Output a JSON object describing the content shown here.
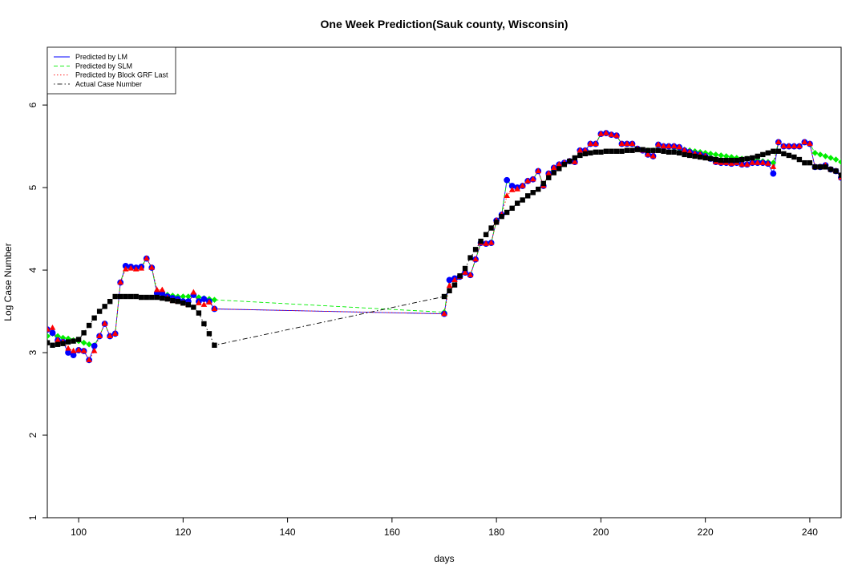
{
  "chart_data": {
    "type": "line",
    "title": "One Week Prediction(Sauk county, Wisconsin)",
    "xlabel": "days",
    "ylabel": "Log Case Number",
    "xlim": [
      94,
      246
    ],
    "ylim": [
      1,
      6.7
    ],
    "x_ticks": [
      100,
      120,
      140,
      160,
      180,
      200,
      220,
      240
    ],
    "y_ticks": [
      1,
      2,
      3,
      4,
      5,
      6
    ],
    "legend": {
      "position": "top-left",
      "entries": [
        {
          "label": "Predicted by LM",
          "color": "#0000ff",
          "dash": "solid"
        },
        {
          "label": "Predicted by SLM",
          "color": "#00ee00",
          "dash": "dashed"
        },
        {
          "label": "Predicted by Block GRF Last",
          "color": "#ff0000",
          "dash": "dotted"
        },
        {
          "label": "Actual Case Number",
          "color": "#000000",
          "dash": "dotdash"
        }
      ]
    },
    "series": [
      {
        "name": "Predicted by LM",
        "color": "#0000ff",
        "marker": "circle",
        "x": [
          94,
          95,
          96,
          97,
          98,
          99,
          100,
          101,
          102,
          103,
          104,
          105,
          106,
          107,
          108,
          109,
          110,
          111,
          112,
          113,
          114,
          115,
          116,
          117,
          118,
          119,
          120,
          121,
          122,
          123,
          124,
          125,
          126,
          170,
          171,
          172,
          173,
          174,
          175,
          176,
          177,
          178,
          179,
          180,
          181,
          182,
          183,
          184,
          185,
          186,
          187,
          188,
          189,
          190,
          191,
          192,
          193,
          194,
          195,
          196,
          197,
          198,
          199,
          200,
          201,
          202,
          203,
          204,
          205,
          206,
          207,
          208,
          209,
          210,
          211,
          212,
          213,
          214,
          215,
          216,
          217,
          218,
          219,
          220,
          221,
          222,
          223,
          224,
          225,
          226,
          227,
          228,
          229,
          230,
          231,
          232,
          233,
          234,
          235,
          236,
          237,
          238,
          239,
          240,
          241,
          242,
          243,
          244,
          245,
          246
        ],
        "y": [
          3.28,
          3.24,
          3.15,
          3.13,
          3.0,
          2.97,
          3.03,
          3.02,
          2.91,
          3.08,
          3.2,
          3.35,
          3.2,
          3.23,
          3.85,
          4.05,
          4.04,
          4.03,
          4.04,
          4.14,
          4.03,
          3.72,
          3.72,
          3.68,
          3.66,
          3.65,
          3.62,
          3.62,
          3.7,
          3.62,
          3.65,
          3.62,
          3.53,
          3.47,
          3.88,
          3.9,
          3.92,
          3.97,
          3.94,
          4.13,
          4.33,
          4.32,
          4.33,
          4.6,
          4.67,
          5.09,
          5.02,
          5.0,
          5.02,
          5.08,
          5.1,
          5.2,
          5.02,
          5.17,
          5.24,
          5.28,
          5.3,
          5.32,
          5.31,
          5.45,
          5.45,
          5.53,
          5.53,
          5.65,
          5.66,
          5.64,
          5.63,
          5.53,
          5.53,
          5.53,
          5.47,
          5.45,
          5.4,
          5.38,
          5.52,
          5.5,
          5.5,
          5.5,
          5.49,
          5.45,
          5.43,
          5.41,
          5.4,
          5.38,
          5.35,
          5.31,
          5.3,
          5.3,
          5.29,
          5.3,
          5.28,
          5.28,
          5.3,
          5.3,
          5.3,
          5.29,
          5.17,
          5.55,
          5.5,
          5.5,
          5.5,
          5.5,
          5.55,
          5.53,
          5.25,
          5.25,
          5.27,
          5.22,
          5.2,
          5.12
        ]
      },
      {
        "name": "Predicted by SLM",
        "color": "#00ee00",
        "marker": "diamond",
        "x": [
          94,
          95,
          96,
          97,
          98,
          99,
          100,
          101,
          102,
          103,
          104,
          105,
          106,
          107,
          108,
          109,
          110,
          111,
          112,
          113,
          114,
          115,
          116,
          117,
          118,
          119,
          120,
          121,
          122,
          123,
          124,
          125,
          126,
          170,
          171,
          172,
          173,
          174,
          175,
          176,
          177,
          178,
          179,
          180,
          181,
          182,
          183,
          184,
          185,
          186,
          187,
          188,
          189,
          190,
          191,
          192,
          193,
          194,
          195,
          196,
          197,
          198,
          199,
          200,
          201,
          202,
          203,
          204,
          205,
          206,
          207,
          208,
          209,
          210,
          211,
          212,
          213,
          214,
          215,
          216,
          217,
          218,
          219,
          220,
          221,
          222,
          223,
          224,
          225,
          226,
          227,
          228,
          229,
          230,
          231,
          232,
          233,
          234,
          235,
          236,
          237,
          238,
          239,
          240,
          241,
          242,
          243,
          244,
          245,
          246
        ],
        "y": [
          3.2,
          3.23,
          3.2,
          3.18,
          3.17,
          3.15,
          3.14,
          3.12,
          3.1,
          3.09,
          3.2,
          3.35,
          3.2,
          3.23,
          3.85,
          4.05,
          4.04,
          4.03,
          4.04,
          4.14,
          4.03,
          3.72,
          3.72,
          3.7,
          3.69,
          3.68,
          3.68,
          3.68,
          3.7,
          3.67,
          3.66,
          3.65,
          3.64,
          3.49,
          3.88,
          3.9,
          3.92,
          3.97,
          3.94,
          4.13,
          4.33,
          4.32,
          4.33,
          4.6,
          4.67,
          5.09,
          5.02,
          5.0,
          5.02,
          5.08,
          5.1,
          5.2,
          5.02,
          5.17,
          5.24,
          5.28,
          5.3,
          5.32,
          5.31,
          5.45,
          5.45,
          5.53,
          5.53,
          5.65,
          5.66,
          5.64,
          5.63,
          5.53,
          5.53,
          5.53,
          5.47,
          5.45,
          5.45,
          5.45,
          5.52,
          5.5,
          5.5,
          5.48,
          5.47,
          5.46,
          5.45,
          5.44,
          5.43,
          5.42,
          5.41,
          5.4,
          5.39,
          5.38,
          5.37,
          5.36,
          5.35,
          5.35,
          5.34,
          5.33,
          5.32,
          5.31,
          5.3,
          5.55,
          5.5,
          5.5,
          5.5,
          5.5,
          5.55,
          5.53,
          5.42,
          5.4,
          5.38,
          5.36,
          5.34,
          5.31
        ]
      },
      {
        "name": "Predicted by Block GRF Last",
        "color": "#ff0000",
        "marker": "triangle",
        "x": [
          94,
          95,
          96,
          97,
          98,
          99,
          100,
          101,
          102,
          103,
          104,
          105,
          106,
          107,
          108,
          109,
          110,
          111,
          112,
          113,
          114,
          115,
          116,
          117,
          118,
          119,
          120,
          121,
          122,
          123,
          124,
          125,
          126,
          170,
          171,
          172,
          173,
          174,
          175,
          176,
          177,
          178,
          179,
          180,
          181,
          182,
          183,
          184,
          185,
          186,
          187,
          188,
          189,
          190,
          191,
          192,
          193,
          194,
          195,
          196,
          197,
          198,
          199,
          200,
          201,
          202,
          203,
          204,
          205,
          206,
          207,
          208,
          209,
          210,
          211,
          212,
          213,
          214,
          215,
          216,
          217,
          218,
          219,
          220,
          221,
          222,
          223,
          224,
          225,
          226,
          227,
          228,
          229,
          230,
          231,
          232,
          233,
          234,
          235,
          236,
          237,
          238,
          239,
          240,
          241,
          242,
          243,
          244,
          245,
          246
        ],
        "y": [
          3.28,
          3.3,
          3.15,
          3.13,
          3.05,
          3.02,
          3.03,
          3.02,
          2.91,
          3.02,
          3.2,
          3.35,
          3.2,
          3.23,
          3.85,
          4.01,
          4.02,
          4.01,
          4.02,
          4.14,
          4.03,
          3.76,
          3.76,
          3.66,
          3.63,
          3.62,
          3.6,
          3.58,
          3.73,
          3.6,
          3.58,
          3.61,
          3.53,
          3.47,
          3.81,
          3.88,
          3.92,
          3.97,
          3.94,
          4.13,
          4.33,
          4.32,
          4.33,
          4.6,
          4.67,
          4.9,
          4.97,
          4.98,
          5.02,
          5.08,
          5.1,
          5.2,
          5.02,
          5.17,
          5.24,
          5.28,
          5.3,
          5.32,
          5.31,
          5.45,
          5.45,
          5.53,
          5.53,
          5.65,
          5.66,
          5.64,
          5.63,
          5.53,
          5.53,
          5.53,
          5.47,
          5.45,
          5.4,
          5.38,
          5.52,
          5.5,
          5.5,
          5.5,
          5.49,
          5.45,
          5.43,
          5.41,
          5.4,
          5.38,
          5.35,
          5.31,
          5.3,
          5.3,
          5.29,
          5.3,
          5.28,
          5.28,
          5.3,
          5.3,
          5.3,
          5.29,
          5.25,
          5.55,
          5.5,
          5.5,
          5.5,
          5.5,
          5.55,
          5.53,
          5.25,
          5.25,
          5.27,
          5.22,
          5.2,
          5.12
        ]
      },
      {
        "name": "Actual Case Number",
        "color": "#000000",
        "marker": "square",
        "x": [
          94,
          95,
          96,
          97,
          98,
          99,
          100,
          101,
          102,
          103,
          104,
          105,
          106,
          107,
          108,
          109,
          110,
          111,
          112,
          113,
          114,
          115,
          116,
          117,
          118,
          119,
          120,
          121,
          122,
          123,
          124,
          125,
          126,
          170,
          171,
          172,
          173,
          174,
          175,
          176,
          177,
          178,
          179,
          180,
          181,
          182,
          183,
          184,
          185,
          186,
          187,
          188,
          189,
          190,
          191,
          192,
          193,
          194,
          195,
          196,
          197,
          198,
          199,
          200,
          201,
          202,
          203,
          204,
          205,
          206,
          207,
          208,
          209,
          210,
          211,
          212,
          213,
          214,
          215,
          216,
          217,
          218,
          219,
          220,
          221,
          222,
          223,
          224,
          225,
          226,
          227,
          228,
          229,
          230,
          231,
          232,
          233,
          234,
          235,
          236,
          237,
          238,
          239,
          240,
          241,
          242,
          243,
          244,
          245,
          246
        ],
        "y": [
          3.12,
          3.09,
          3.1,
          3.11,
          3.13,
          3.14,
          3.16,
          3.24,
          3.33,
          3.42,
          3.5,
          3.56,
          3.62,
          3.68,
          3.68,
          3.68,
          3.68,
          3.68,
          3.67,
          3.67,
          3.67,
          3.67,
          3.66,
          3.65,
          3.63,
          3.62,
          3.6,
          3.58,
          3.55,
          3.48,
          3.35,
          3.23,
          3.09,
          3.68,
          3.75,
          3.82,
          3.93,
          4.02,
          4.15,
          4.25,
          4.35,
          4.43,
          4.51,
          4.58,
          4.65,
          4.7,
          4.75,
          4.81,
          4.85,
          4.9,
          4.94,
          4.98,
          5.05,
          5.12,
          5.18,
          5.23,
          5.28,
          5.32,
          5.36,
          5.39,
          5.41,
          5.42,
          5.43,
          5.43,
          5.44,
          5.44,
          5.44,
          5.44,
          5.45,
          5.45,
          5.46,
          5.46,
          5.45,
          5.45,
          5.45,
          5.44,
          5.43,
          5.43,
          5.42,
          5.4,
          5.39,
          5.38,
          5.37,
          5.36,
          5.35,
          5.34,
          5.33,
          5.33,
          5.33,
          5.33,
          5.34,
          5.35,
          5.36,
          5.38,
          5.4,
          5.42,
          5.44,
          5.44,
          5.41,
          5.39,
          5.37,
          5.34,
          5.3,
          5.3,
          5.25,
          5.25,
          5.25,
          5.22,
          5.2,
          5.15
        ]
      }
    ]
  }
}
